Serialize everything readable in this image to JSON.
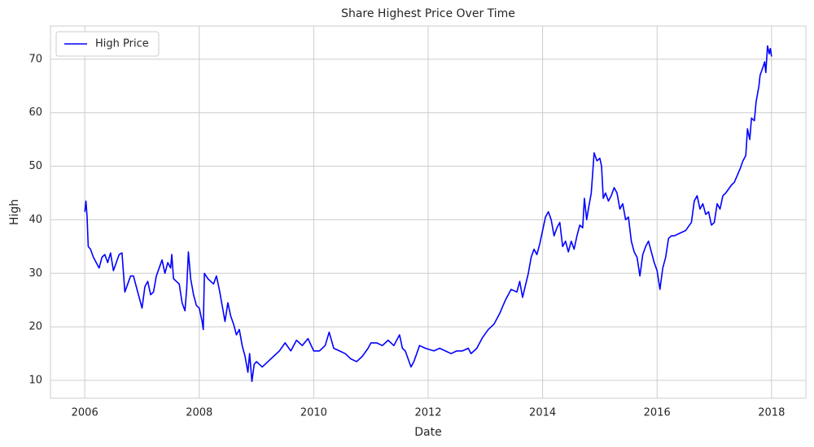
{
  "chart_data": {
    "type": "line",
    "title": "Share Highest Price Over Time",
    "x_label": "Date",
    "y_label": "High",
    "x": [
      2006.0,
      2006.02,
      2006.04,
      2006.06,
      2006.1,
      2006.15,
      2006.2,
      2006.25,
      2006.3,
      2006.35,
      2006.4,
      2006.45,
      2006.5,
      2006.55,
      2006.6,
      2006.65,
      2006.7,
      2006.75,
      2006.8,
      2006.85,
      2006.9,
      2006.95,
      2007.0,
      2007.05,
      2007.1,
      2007.15,
      2007.2,
      2007.25,
      2007.3,
      2007.35,
      2007.4,
      2007.45,
      2007.5,
      2007.52,
      2007.55,
      2007.6,
      2007.65,
      2007.7,
      2007.75,
      2007.78,
      2007.81,
      2007.85,
      2007.9,
      2007.95,
      2008.0,
      2008.05,
      2008.07,
      2008.09,
      2008.15,
      2008.2,
      2008.25,
      2008.3,
      2008.35,
      2008.4,
      2008.45,
      2008.5,
      2008.55,
      2008.6,
      2008.65,
      2008.7,
      2008.75,
      2008.8,
      2008.85,
      2008.88,
      2008.92,
      2008.96,
      2009.0,
      2009.1,
      2009.2,
      2009.3,
      2009.4,
      2009.5,
      2009.6,
      2009.7,
      2009.8,
      2009.9,
      2010.0,
      2010.1,
      2010.2,
      2010.27,
      2010.35,
      2010.45,
      2010.55,
      2010.65,
      2010.75,
      2010.85,
      2010.95,
      2011.0,
      2011.1,
      2011.2,
      2011.3,
      2011.4,
      2011.5,
      2011.55,
      2011.6,
      2011.65,
      2011.7,
      2011.75,
      2011.8,
      2011.85,
      2011.95,
      2012.1,
      2012.2,
      2012.3,
      2012.4,
      2012.5,
      2012.6,
      2012.7,
      2012.75,
      2012.85,
      2012.95,
      2013.05,
      2013.15,
      2013.25,
      2013.35,
      2013.45,
      2013.55,
      2013.6,
      2013.65,
      2013.75,
      2013.8,
      2013.85,
      2013.9,
      2013.95,
      2014.0,
      2014.05,
      2014.1,
      2014.15,
      2014.2,
      2014.25,
      2014.3,
      2014.35,
      2014.4,
      2014.45,
      2014.5,
      2014.55,
      2014.6,
      2014.65,
      2014.7,
      2014.73,
      2014.77,
      2014.8,
      2014.85,
      2014.9,
      2014.95,
      2015.0,
      2015.03,
      2015.06,
      2015.1,
      2015.15,
      2015.2,
      2015.25,
      2015.3,
      2015.35,
      2015.4,
      2015.45,
      2015.5,
      2015.55,
      2015.6,
      2015.65,
      2015.7,
      2015.75,
      2015.8,
      2015.85,
      2015.9,
      2015.95,
      2016.0,
      2016.05,
      2016.1,
      2016.15,
      2016.2,
      2016.25,
      2016.3,
      2016.4,
      2016.5,
      2016.6,
      2016.65,
      2016.7,
      2016.75,
      2016.8,
      2016.85,
      2016.9,
      2016.95,
      2017.0,
      2017.05,
      2017.1,
      2017.15,
      2017.2,
      2017.3,
      2017.35,
      2017.45,
      2017.5,
      2017.55,
      2017.58,
      2017.62,
      2017.65,
      2017.7,
      2017.73,
      2017.78,
      2017.8,
      2017.85,
      2017.88,
      2017.9,
      2017.93,
      2017.96,
      2017.98,
      2018.0
    ],
    "series": [
      {
        "name": "High Price",
        "color": "#0000ff",
        "values": [
          41.5,
          43.5,
          40.5,
          35,
          34.5,
          33,
          32,
          31,
          33,
          33.5,
          32,
          33.8,
          30.5,
          32,
          33.5,
          33.8,
          26.5,
          28,
          29.5,
          29.5,
          27.5,
          25.5,
          23.5,
          27.5,
          28.5,
          26,
          26.5,
          29.5,
          31,
          32.5,
          30,
          32,
          31,
          33.5,
          29,
          28.5,
          28,
          24.5,
          23,
          27,
          34,
          29,
          26,
          24,
          23.5,
          21,
          19.5,
          30,
          29,
          28.5,
          28,
          29.5,
          27,
          24,
          21,
          24.5,
          22,
          20.5,
          18.5,
          19.5,
          16.5,
          14.5,
          11.5,
          15,
          9.8,
          13,
          13.5,
          12.5,
          13.5,
          14.5,
          15.5,
          17,
          15.5,
          17.5,
          16.5,
          17.8,
          15.5,
          15.5,
          16.5,
          19,
          16,
          15.5,
          15,
          14,
          13.5,
          14.5,
          16,
          17,
          17,
          16.5,
          17.5,
          16.5,
          18.5,
          16,
          15.5,
          14,
          12.5,
          13.5,
          15,
          16.5,
          16,
          15.5,
          16,
          15.5,
          15,
          15.5,
          15.5,
          16,
          15,
          16,
          18,
          19.5,
          20.5,
          22.5,
          25,
          27,
          26.5,
          28.5,
          25.5,
          30,
          33,
          34.5,
          33.5,
          35.5,
          38,
          40.5,
          41.5,
          40,
          37,
          38.5,
          39.5,
          35,
          36,
          34,
          36,
          34.5,
          37,
          39,
          38.5,
          44,
          40,
          42,
          45,
          52.5,
          51,
          51.5,
          50,
          44,
          45,
          43.5,
          44.5,
          46,
          45,
          42,
          43,
          40,
          40.5,
          36,
          34,
          33,
          29.5,
          33.5,
          35,
          36,
          34,
          32,
          30.5,
          27,
          31,
          33,
          36.5,
          37,
          37,
          37.5,
          38,
          39.5,
          43.5,
          44.5,
          42,
          43,
          41,
          41.5,
          39,
          39.5,
          43,
          42,
          44.5,
          45,
          46.5,
          47,
          49.5,
          51,
          52,
          57,
          55,
          59,
          58.5,
          62,
          65,
          67,
          68.5,
          69.5,
          67.5,
          72.5,
          71,
          72,
          70.5
        ]
      }
    ],
    "xlim": [
      2005.4,
      2018.6
    ],
    "xticks": [
      2006,
      2008,
      2010,
      2012,
      2014,
      2016,
      2018
    ],
    "ylim": [
      6.66,
      76.2
    ],
    "yticks": [
      10,
      20,
      30,
      40,
      50,
      60,
      70
    ],
    "grid": true,
    "legend": "upper-left"
  }
}
